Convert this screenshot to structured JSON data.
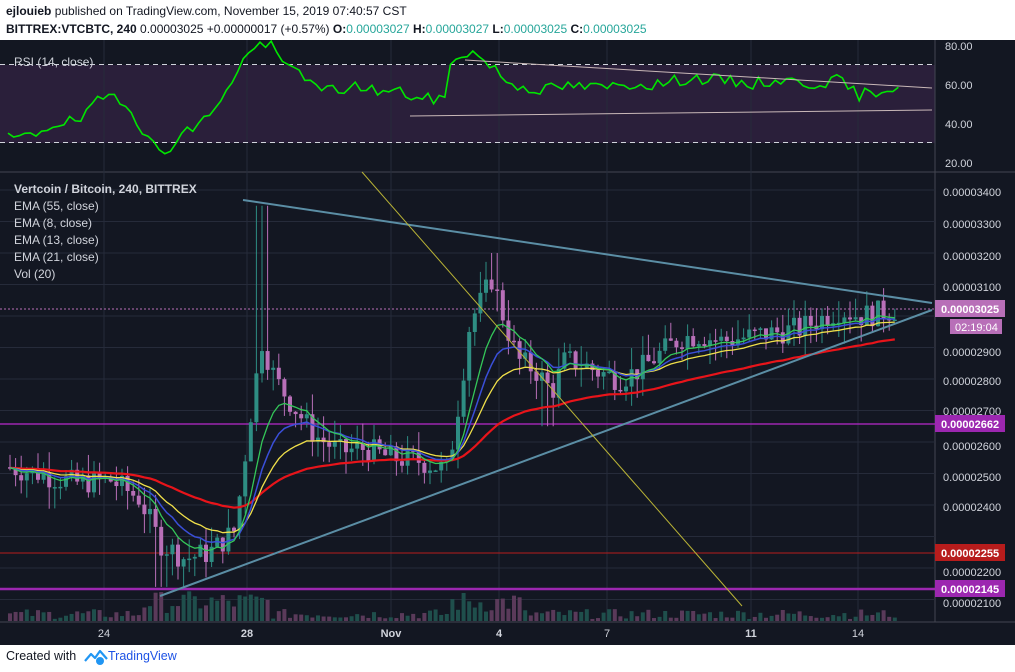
{
  "header": {
    "author": "ejlouieb",
    "published_text": "published on TradingView.com, November 15, 2019 07:40:57 CST",
    "symbol": "BITTREX:VTCBTC, 240",
    "last": "0.00003025",
    "change": "+0.00000017 (+0.57%)",
    "open_label": "O:",
    "open": "0.00003027",
    "high_label": "H:",
    "high": "0.00003027",
    "low_label": "L:",
    "low": "0.00003025",
    "close_label": "C:",
    "close": "0.00003025"
  },
  "rsi_pane": {
    "legend": "RSI (14, close)",
    "ticks": [
      "80.00",
      "60.00",
      "40.00",
      "20.00"
    ],
    "line_color": "#00e600",
    "band_color": "#2a1f3a"
  },
  "price_pane": {
    "legend": [
      "Vertcoin / Bitcoin, 240, BITTREX",
      "EMA (55, close)",
      "EMA (8, close)",
      "EMA (13, close)",
      "EMA (21, close)",
      "Vol (20)"
    ],
    "ticks": [
      "0.00003400",
      "0.00003300",
      "0.00003200",
      "0.00003100",
      "0.00002900",
      "0.00002800",
      "0.00002700",
      "0.00002600",
      "0.00002500",
      "0.00002400",
      "0.00002200",
      "0.00002100"
    ],
    "badges": {
      "last_price": "0.00003025",
      "countdown": "02:19:04",
      "level_purple": "0.00002662",
      "level_red": "0.00002255",
      "level_violet": "0.00002145"
    },
    "colors": {
      "background": "#131722",
      "up_candle": "#2e8d83",
      "down_candle": "#b86fb8",
      "ema55": "#e8141a",
      "ema8": "#34c759",
      "ema13": "#3a4fd8",
      "ema21": "#f0e04a",
      "trendline": "#5b8ea5",
      "purple_level": "#9c27b0",
      "red_level": "#b71c1c"
    }
  },
  "time_axis": {
    "labels": [
      "24",
      "28",
      "Nov",
      "4",
      "7",
      "11",
      "14"
    ]
  },
  "footer": {
    "created_with": "Created with",
    "brand": "TradingView"
  }
}
